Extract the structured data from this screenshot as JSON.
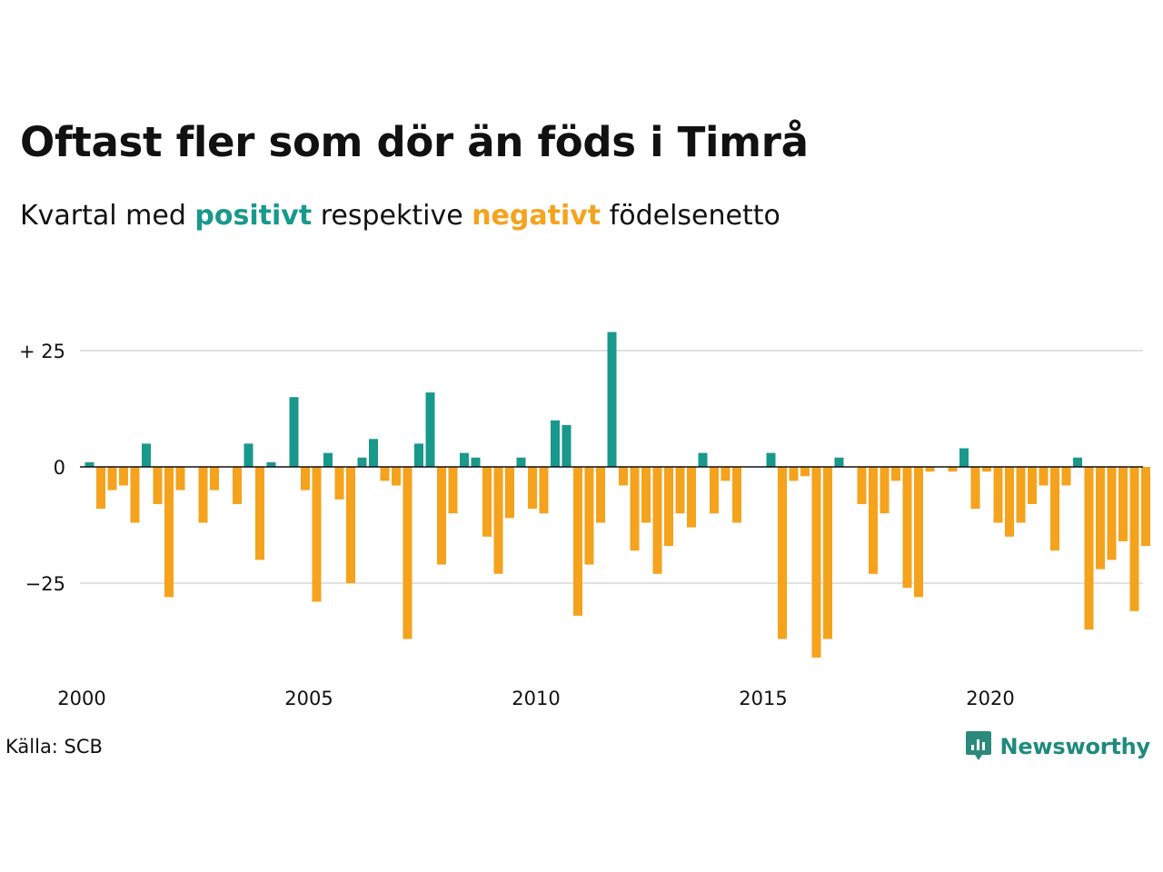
{
  "title": "Oftast fler som dör än föds i Timrå",
  "subtitle": {
    "part1": "Kvartal med ",
    "positive_word": "positivt",
    "part2": " respektive ",
    "negative_word": "negativt",
    "part3": " födelsenetto"
  },
  "source": "Källa: SCB",
  "brand": {
    "name": "Newsworthy",
    "icon": "newsworthy-logo-icon"
  },
  "colors": {
    "positive": "#18998c",
    "negative": "#f5a21d",
    "grid": "#e1e1e1",
    "zero": "#111111"
  },
  "chart_data": {
    "type": "bar",
    "frequency": "quarterly",
    "x_start": "2000 Q1",
    "y_ticks": [
      {
        "value": 25,
        "label": "+ 25"
      },
      {
        "value": 0,
        "label": "0"
      },
      {
        "value": -25,
        "label": "−25"
      }
    ],
    "x_ticks": [
      {
        "value": 2000,
        "label": "2000"
      },
      {
        "value": 2005,
        "label": "2005"
      },
      {
        "value": 2010,
        "label": "2010"
      },
      {
        "value": 2015,
        "label": "2015"
      },
      {
        "value": 2020,
        "label": "2020"
      }
    ],
    "grid": true,
    "values": [
      1,
      -9,
      -5,
      -4,
      -12,
      5,
      -8,
      -28,
      -5,
      0,
      -12,
      -5,
      0,
      -8,
      5,
      -20,
      1,
      0,
      15,
      -5,
      -29,
      3,
      -7,
      -25,
      2,
      6,
      -3,
      -4,
      -37,
      5,
      16,
      -21,
      -10,
      3,
      2,
      -15,
      -23,
      -11,
      2,
      -9,
      -10,
      10,
      9,
      -32,
      -21,
      -12,
      29,
      -4,
      -18,
      -12,
      -23,
      -17,
      -10,
      -13,
      3,
      -10,
      -3,
      -12,
      0,
      0,
      3,
      -37,
      -3,
      -2,
      -41,
      -37,
      2,
      0,
      -8,
      -23,
      -10,
      -3,
      -26,
      -28,
      -1,
      0,
      -1,
      4,
      -9,
      -1,
      -12,
      -15,
      -12,
      -8,
      -4,
      -18,
      -4,
      2,
      -35,
      -22,
      -20,
      -16,
      -31,
      -17
    ]
  }
}
